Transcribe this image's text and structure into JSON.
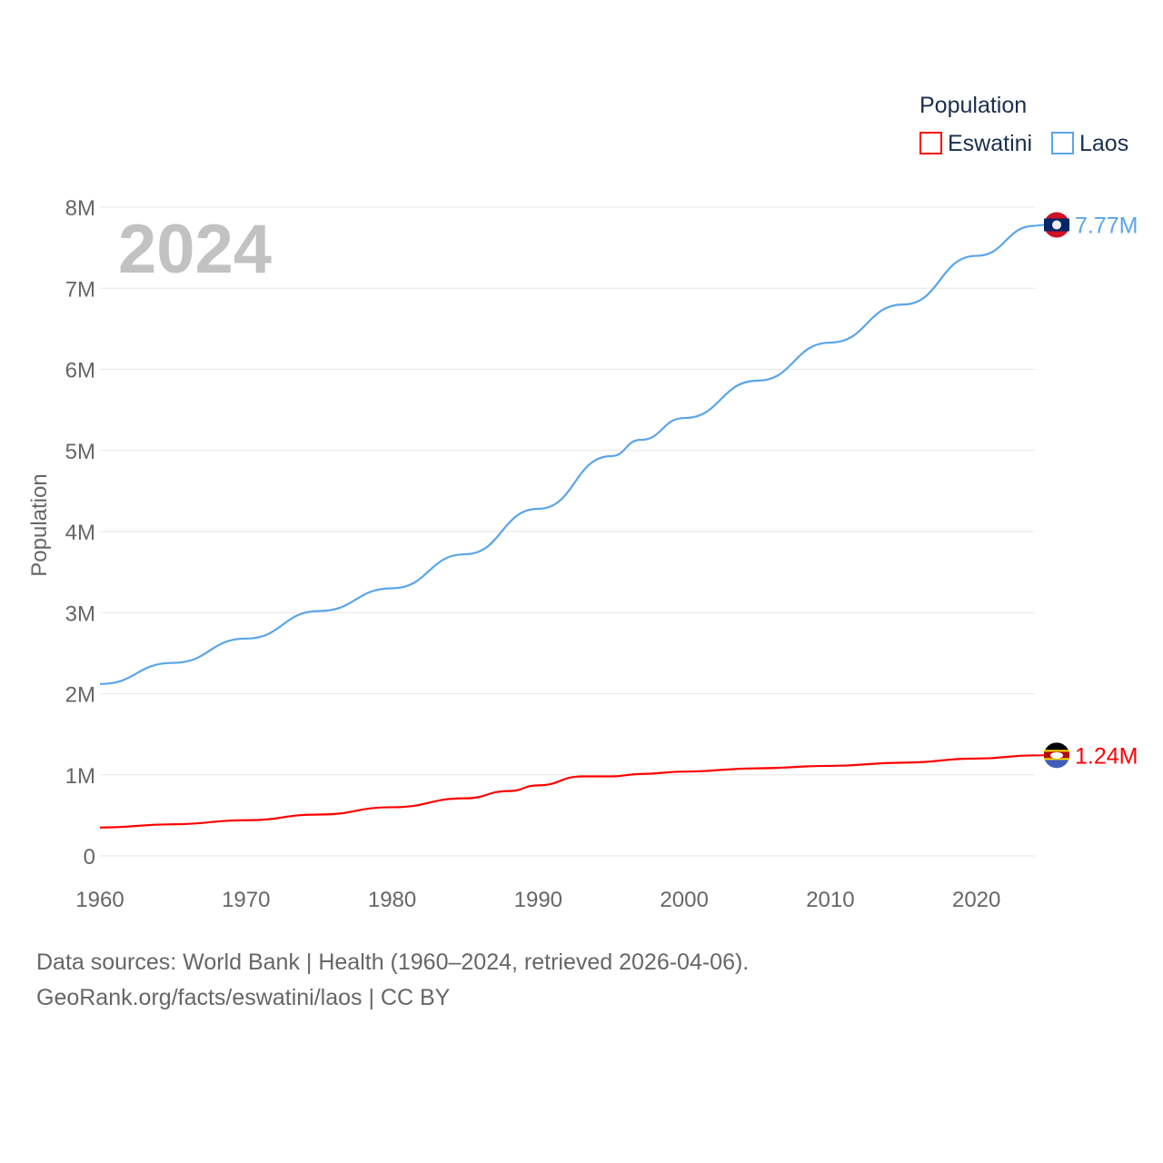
{
  "chart_data": {
    "type": "line",
    "title": "",
    "year_label": "2024",
    "xlabel": "",
    "ylabel": "Population",
    "xlim": [
      1960,
      2024
    ],
    "ylim": [
      0,
      8000000
    ],
    "x_ticks": [
      1960,
      1970,
      1980,
      1990,
      2000,
      2010,
      2020
    ],
    "y_ticks": [
      {
        "v": 0,
        "label": "0"
      },
      {
        "v": 1000000,
        "label": "1M"
      },
      {
        "v": 2000000,
        "label": "2M"
      },
      {
        "v": 3000000,
        "label": "3M"
      },
      {
        "v": 4000000,
        "label": "4M"
      },
      {
        "v": 5000000,
        "label": "5M"
      },
      {
        "v": 6000000,
        "label": "6M"
      },
      {
        "v": 7000000,
        "label": "7M"
      },
      {
        "v": 8000000,
        "label": "8M"
      }
    ],
    "grid": true,
    "legend": {
      "title": "Population",
      "placement": "top-right"
    },
    "series": [
      {
        "name": "Eswatini",
        "color": "#ff0000",
        "end_label": "1.24M",
        "flag": "eswatini-flag",
        "x": [
          1960,
          1965,
          1970,
          1975,
          1980,
          1985,
          1988,
          1990,
          1993,
          1995,
          1997,
          2000,
          2005,
          2010,
          2015,
          2020,
          2024
        ],
        "values": [
          350000,
          390000,
          440000,
          510000,
          600000,
          710000,
          800000,
          870000,
          980000,
          980000,
          1010000,
          1040000,
          1080000,
          1110000,
          1150000,
          1200000,
          1240000
        ]
      },
      {
        "name": "Laos",
        "color": "#5aa5ea",
        "end_label": "7.77M",
        "flag": "laos-flag",
        "x": [
          1960,
          1965,
          1970,
          1975,
          1980,
          1985,
          1990,
          1995,
          1997,
          2000,
          2005,
          2010,
          2015,
          2020,
          2024
        ],
        "values": [
          2120000,
          2380000,
          2680000,
          3020000,
          3300000,
          3720000,
          4280000,
          4930000,
          5130000,
          5400000,
          5860000,
          6330000,
          6800000,
          7400000,
          7770000
        ]
      }
    ]
  },
  "footer": {
    "line1": "Data sources: World Bank | Health (1960–2024, retrieved 2026-04-06).",
    "line2": "GeoRank.org/facts/eswatini/laos | CC BY"
  }
}
